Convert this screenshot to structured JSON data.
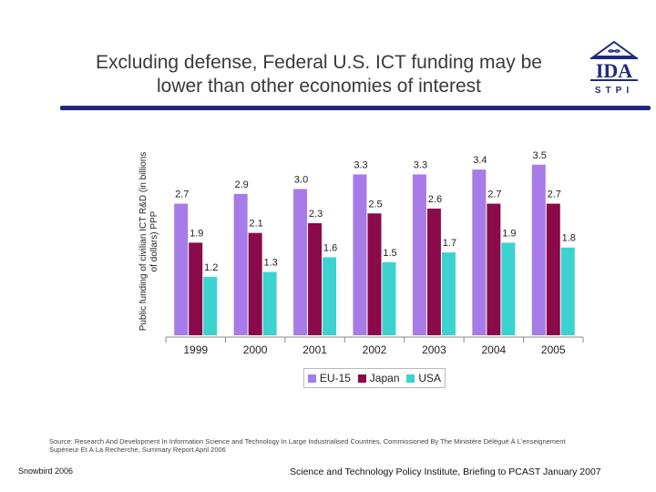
{
  "slide": {
    "title_line1": "Excluding defense, Federal U.S. ICT funding may be",
    "title_line2": "lower than other economies of interest",
    "logo_text": "IDA",
    "logo_sub": "STPI",
    "source": "Source: Research And Development In Information Science and Technology In Large Industrialised Countries, Commissioned By The Ministère Délégué À L'enseignement Supérieur Et À La Recherche, Summary Report April 2006",
    "footer_left": "Snowbird 2006",
    "footer_center": "Science and Technology Policy Institute, Briefing to PCAST January 2007"
  },
  "colors": {
    "EU-15": "#a77be8",
    "Japan": "#8a0a4a",
    "USA": "#3cd2d0",
    "rule": "#1f2a7c"
  },
  "chart_data": {
    "type": "bar",
    "title": "",
    "ylabel": "Public funding of civilian ICT R&D (in billions of dollars) PPP",
    "xlabel": "",
    "categories": [
      "1999",
      "2000",
      "2001",
      "2002",
      "2003",
      "2004",
      "2005"
    ],
    "series": [
      {
        "name": "EU-15",
        "values": [
          2.7,
          2.9,
          3.0,
          3.3,
          3.3,
          3.4,
          3.5
        ]
      },
      {
        "name": "Japan",
        "values": [
          1.9,
          2.1,
          2.3,
          2.5,
          2.6,
          2.7,
          2.7
        ]
      },
      {
        "name": "USA",
        "values": [
          1.2,
          1.3,
          1.6,
          1.5,
          1.7,
          1.9,
          1.8
        ]
      }
    ],
    "data_labels": [
      [
        "2.7",
        "2.9",
        "3.0",
        "3.3",
        "3.3",
        "3.4",
        "3.5"
      ],
      [
        "1.9",
        "2.1",
        "2.3",
        "2.5",
        "2.6",
        "2.7",
        "2.7"
      ],
      [
        "1.2",
        "1.3",
        "1.6",
        "1.5",
        "1.7",
        "1.9",
        "1.8"
      ]
    ],
    "ylim": [
      0,
      4
    ],
    "grid": false,
    "legend": "bottom-center"
  }
}
